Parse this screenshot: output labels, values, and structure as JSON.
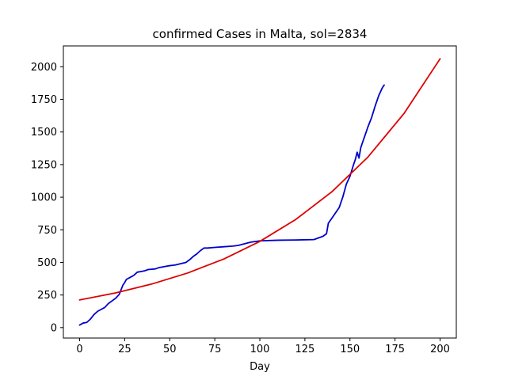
{
  "chart_data": {
    "type": "line",
    "title": "confirmed Cases in Malta, sol=2834",
    "xlabel": "Day",
    "ylabel": "",
    "xlim": [
      -9,
      209
    ],
    "ylim": [
      -80,
      2160
    ],
    "xticks": [
      0,
      25,
      50,
      75,
      100,
      125,
      150,
      175,
      200
    ],
    "yticks": [
      0,
      250,
      500,
      750,
      1000,
      1250,
      1500,
      1750,
      2000
    ],
    "grid": false,
    "series": [
      {
        "color": "#0000cc",
        "x": [
          0,
          2,
          4,
          6,
          8,
          10,
          12,
          14,
          16,
          18,
          20,
          22,
          23,
          24,
          25,
          26,
          28,
          30,
          32,
          34,
          36,
          38,
          42,
          44,
          46,
          48,
          50,
          53,
          56,
          59,
          61,
          63,
          65,
          67,
          69,
          71,
          75,
          80,
          85,
          88,
          92,
          95,
          100,
          110,
          120,
          130,
          135,
          137,
          138,
          140,
          142,
          144,
          146,
          148,
          150,
          152,
          153,
          154,
          155,
          156,
          158,
          160,
          162,
          164,
          166,
          168,
          169
        ],
        "y": [
          20,
          35,
          40,
          65,
          100,
          125,
          140,
          155,
          185,
          205,
          225,
          255,
          290,
          325,
          345,
          370,
          385,
          400,
          425,
          430,
          435,
          445,
          450,
          460,
          465,
          470,
          475,
          480,
          490,
          500,
          520,
          545,
          565,
          590,
          610,
          610,
          615,
          620,
          625,
          630,
          645,
          655,
          665,
          670,
          672,
          675,
          700,
          720,
          800,
          840,
          880,
          920,
          1000,
          1100,
          1160,
          1250,
          1290,
          1345,
          1300,
          1380,
          1460,
          1540,
          1610,
          1700,
          1780,
          1840,
          1860
        ]
      },
      {
        "color": "#dd0000",
        "equation": "y = 212 * exp(0.01137 * x)",
        "x": [
          0,
          20,
          40,
          60,
          80,
          100,
          120,
          140,
          160,
          180,
          200
        ],
        "y": [
          212,
          266,
          334,
          419,
          526,
          661,
          830,
          1042,
          1308,
          1642,
          2061
        ]
      }
    ]
  }
}
